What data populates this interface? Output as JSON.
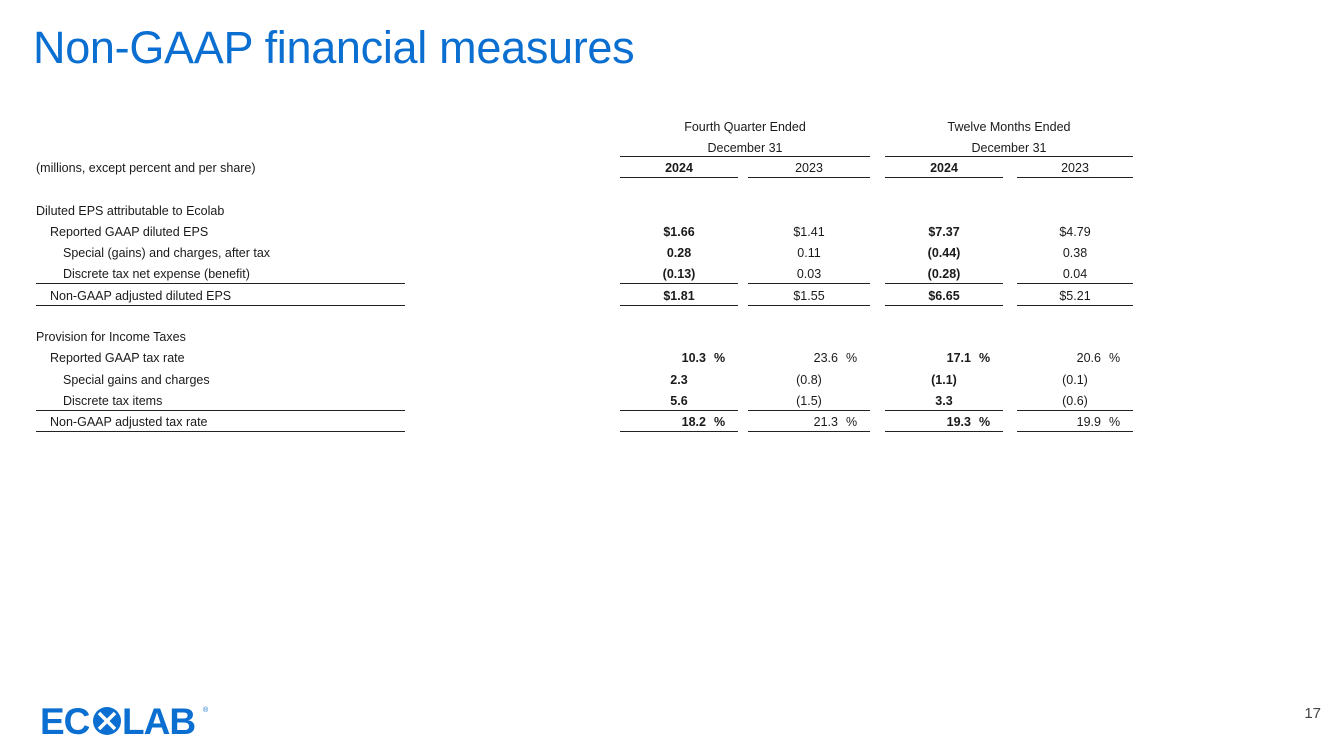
{
  "title": "Non-GAAP financial measures",
  "header": {
    "group1_line1": "Fourth Quarter Ended",
    "group1_line2": "December 31",
    "group2_line1": "Twelve Months Ended",
    "group2_line2": "December 31",
    "units": "(millions, except percent and per share)",
    "years": [
      "2024",
      "2023",
      "2024",
      "2023"
    ]
  },
  "rows": [
    {
      "label": "Diluted EPS attributable to Ecolab",
      "indent": 0,
      "values": []
    },
    {
      "label": "Reported GAAP diluted EPS",
      "indent": 1,
      "values": [
        "$1.66",
        "$1.41",
        "$7.37",
        "$4.79"
      ]
    },
    {
      "label": "Special (gains) and charges, after tax",
      "indent": 2,
      "values": [
        "0.28",
        "0.11",
        "(0.44)",
        "0.38"
      ]
    },
    {
      "label": "Discrete tax net expense (benefit)",
      "indent": 2,
      "values": [
        "(0.13)",
        "0.03",
        "(0.28)",
        "0.04"
      ],
      "underline": true
    },
    {
      "label": "Non-GAAP adjusted diluted EPS",
      "indent": 1,
      "values": [
        "$1.81",
        "$1.55",
        "$6.65",
        "$5.21"
      ],
      "underline": true
    },
    {
      "label": "Provision for Income Taxes",
      "indent": 0,
      "values": [],
      "gap": true
    },
    {
      "label": "Reported GAAP tax rate",
      "indent": 1,
      "values": [
        "10.3",
        "23.6",
        "17.1",
        "20.6"
      ],
      "pct": true
    },
    {
      "label": "Special gains and charges",
      "indent": 2,
      "values": [
        "2.3",
        "(0.8)",
        "(1.1)",
        "(0.1)"
      ]
    },
    {
      "label": "Discrete tax items",
      "indent": 2,
      "values": [
        "5.6",
        "(1.5)",
        "3.3",
        "(0.6)"
      ],
      "underline": true
    },
    {
      "label": "Non-GAAP adjusted tax rate",
      "indent": 1,
      "values": [
        "18.2",
        "21.3",
        "19.3",
        "19.9"
      ],
      "pct": true,
      "underline": true
    }
  ],
  "percent_sign": "%",
  "logo_text": "ECOLAB",
  "page_number": "17",
  "colors": {
    "title": "#0a6fd1",
    "logo": "#0a6fd1"
  }
}
